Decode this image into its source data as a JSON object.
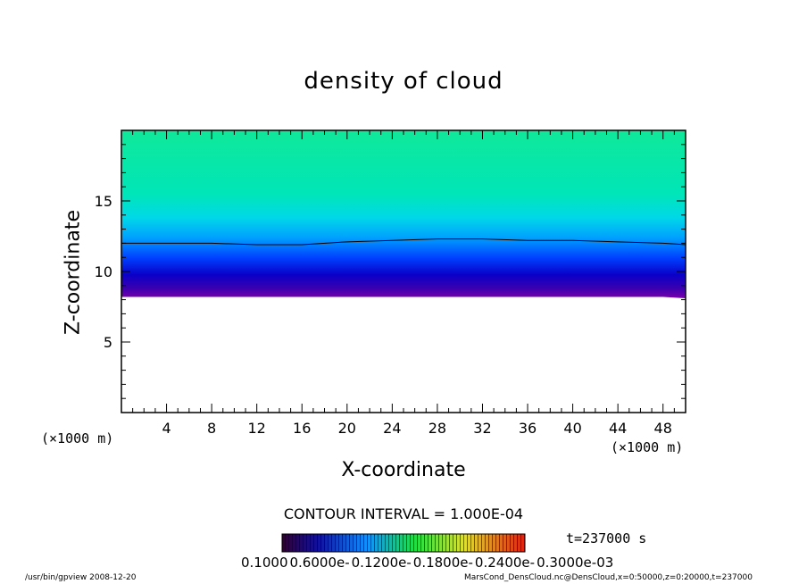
{
  "chart_data": {
    "type": "heatmap",
    "title": "density of cloud",
    "xlabel": "X-coordinate",
    "ylabel": "Z-coordinate",
    "x_unit_left": "(×1000 m)",
    "x_unit_right": "(×1000 m)",
    "xlim": [
      0,
      50
    ],
    "ylim": [
      0,
      20
    ],
    "x_ticks": [
      4,
      8,
      12,
      16,
      20,
      24,
      28,
      32,
      36,
      40,
      44,
      48
    ],
    "y_ticks": [
      5,
      10,
      15
    ],
    "cloud_base_z": [
      8.2,
      8.2,
      8.2,
      8.2,
      8.2,
      8.2,
      8.2,
      8.2,
      8.2,
      8.2,
      8.2,
      8.2,
      8.2,
      8.1
    ],
    "cloud_top_contour_z": [
      12.0,
      12.0,
      12.0,
      11.9,
      11.9,
      12.1,
      12.2,
      12.3,
      12.3,
      12.2,
      12.2,
      12.1,
      12.0,
      11.9
    ],
    "contour_x": [
      0,
      4,
      8,
      12,
      16,
      20,
      24,
      28,
      32,
      36,
      40,
      44,
      48,
      50
    ],
    "contour_interval": "CONTOUR INTERVAL = 1.000E-04",
    "colorbar_labels": [
      "0.1000",
      "0.6000e-",
      "0.1200e-",
      "0.1800e-",
      "0.2400e-",
      "0.3000e-03"
    ],
    "time": "t=237000 s",
    "footer_left": "/usr/bin/gpview   2008-12-20",
    "footer_right": "MarsCond_DensCloud.nc@DensCloud,x=0:50000,z=0:20000,t=237000"
  }
}
